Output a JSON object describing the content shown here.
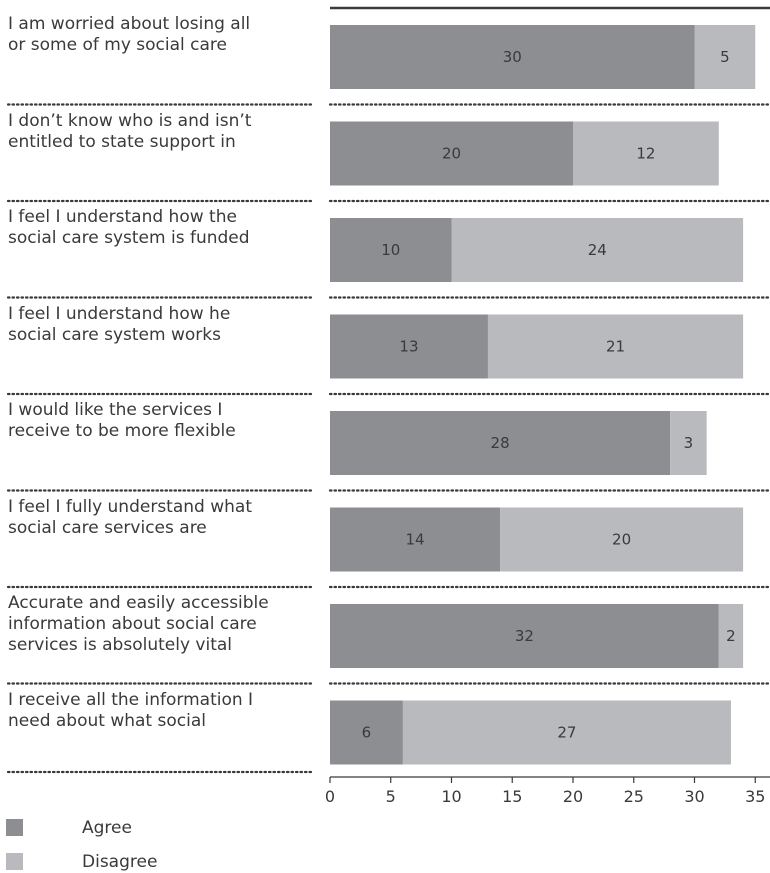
{
  "chart_data": {
    "type": "bar",
    "orientation": "horizontal",
    "stacked": true,
    "categories": [
      "I am worried about losing all\nor some of my social care",
      "I don’t know who is and isn’t\nentitled to state support in",
      "I feel I understand how the\nsocial care system is funded",
      "I feel I understand how he\nsocial care system works",
      "I would like the services I\nreceive to be more flexible",
      "I feel I fully understand what\nsocial care services are",
      "Accurate and easily accessible\ninformation about social care\nservices is absolutely vital",
      "I receive all the information I\nneed about what social"
    ],
    "series": [
      {
        "name": "Agree",
        "color": "#8c8e91",
        "values": [
          30,
          20,
          10,
          13,
          28,
          14,
          32,
          6
        ]
      },
      {
        "name": "Disagree",
        "color": "#b8babd",
        "values": [
          5,
          12,
          24,
          21,
          3,
          20,
          2,
          27
        ]
      }
    ],
    "xlim": [
      0,
      36
    ],
    "xticks": [
      0,
      5,
      10,
      15,
      20,
      25,
      30,
      35
    ],
    "data_labels": true,
    "legend_position": "bottom-left"
  }
}
